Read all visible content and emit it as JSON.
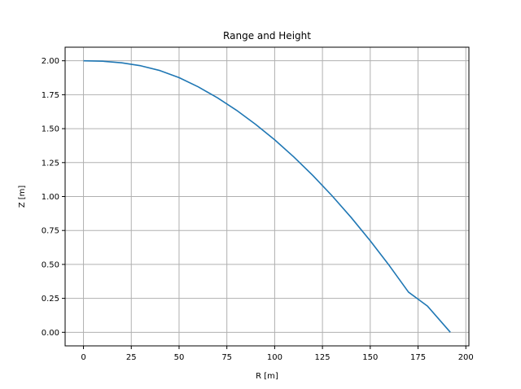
{
  "chart_data": {
    "type": "line",
    "title": "Range and Height",
    "xlabel": "R [m]",
    "ylabel": "Z [m]",
    "xlim": [
      -9.6,
      201.6
    ],
    "ylim": [
      -0.1,
      2.1
    ],
    "xticks": [
      0,
      25,
      50,
      75,
      100,
      125,
      150,
      175,
      200
    ],
    "yticks": [
      0.0,
      0.25,
      0.5,
      0.75,
      1.0,
      1.25,
      1.5,
      1.75,
      2.0
    ],
    "xtick_labels": [
      "0",
      "25",
      "50",
      "75",
      "100",
      "125",
      "150",
      "175",
      "200"
    ],
    "ytick_labels": [
      "0.00",
      "0.25",
      "0.50",
      "0.75",
      "1.00",
      "1.25",
      "1.50",
      "1.75",
      "2.00"
    ],
    "grid": true,
    "color": "#1f77b4",
    "series": [
      {
        "x": [
          0,
          10,
          20,
          30,
          40,
          50,
          60,
          70,
          80,
          90,
          100,
          110,
          120,
          130,
          140,
          150,
          160,
          170,
          180,
          191.9
        ],
        "y": [
          2.0,
          1.997,
          1.985,
          1.963,
          1.928,
          1.876,
          1.808,
          1.728,
          1.636,
          1.532,
          1.418,
          1.292,
          1.155,
          1.006,
          0.846,
          0.674,
          0.491,
          0.296,
          0.192,
          0.0
        ]
      }
    ]
  }
}
